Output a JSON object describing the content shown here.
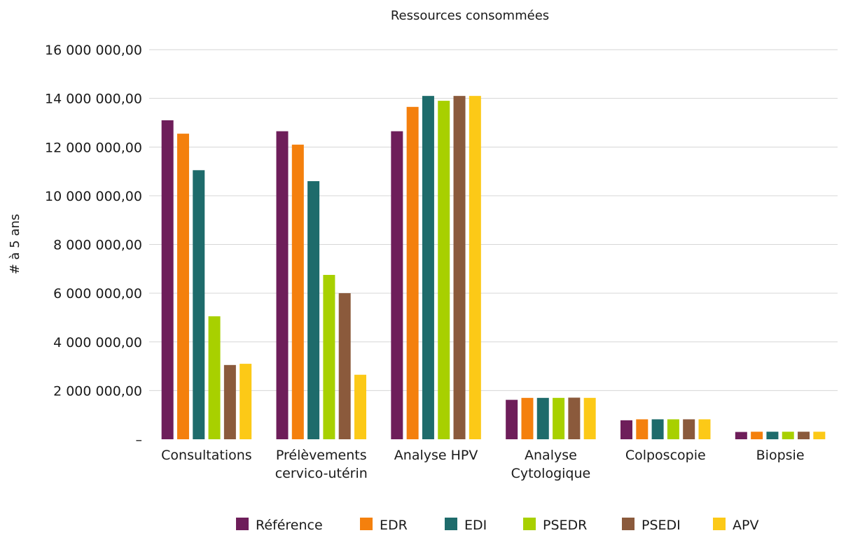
{
  "chart_data": {
    "type": "bar",
    "title": "Ressources consommées",
    "ylabel": "# à 5 ans",
    "xlabel": "",
    "ylim": [
      0,
      16000000
    ],
    "yticks": [
      0,
      2000000,
      4000000,
      6000000,
      8000000,
      10000000,
      12000000,
      14000000,
      16000000
    ],
    "ytick_labels": [
      "–",
      "2 000 000,00",
      "4 000 000,00",
      "6 000 000,00",
      "8 000 000,00",
      "10 000 000,00",
      "12 000 000,00",
      "14 000 000,00",
      "16 000 000,00"
    ],
    "grid": true,
    "legend_position": "bottom",
    "categories": [
      [
        "Consultations"
      ],
      [
        "Prélèvements",
        "cervico-utérin"
      ],
      [
        "Analyse HPV"
      ],
      [
        "Analyse",
        "Cytologique"
      ],
      [
        "Colposcopie"
      ],
      [
        "Biopsie"
      ]
    ],
    "series": [
      {
        "name": "Référence",
        "color": "#6e1e5a",
        "values": [
          13100000,
          12650000,
          12650000,
          1620000,
          780000,
          300000
        ]
      },
      {
        "name": "EDR",
        "color": "#f4800d",
        "values": [
          12550000,
          12100000,
          13650000,
          1700000,
          820000,
          310000
        ]
      },
      {
        "name": "EDI",
        "color": "#1e6b6b",
        "values": [
          11050000,
          10600000,
          14100000,
          1700000,
          820000,
          310000
        ]
      },
      {
        "name": "PSEDR",
        "color": "#a8d000",
        "values": [
          5050000,
          6750000,
          13900000,
          1700000,
          820000,
          310000
        ]
      },
      {
        "name": "PSEDI",
        "color": "#8b5a3c",
        "values": [
          3050000,
          6000000,
          14100000,
          1710000,
          820000,
          310000
        ]
      },
      {
        "name": "APV",
        "color": "#fcc917",
        "values": [
          3100000,
          2650000,
          14100000,
          1700000,
          820000,
          310000
        ]
      }
    ]
  }
}
